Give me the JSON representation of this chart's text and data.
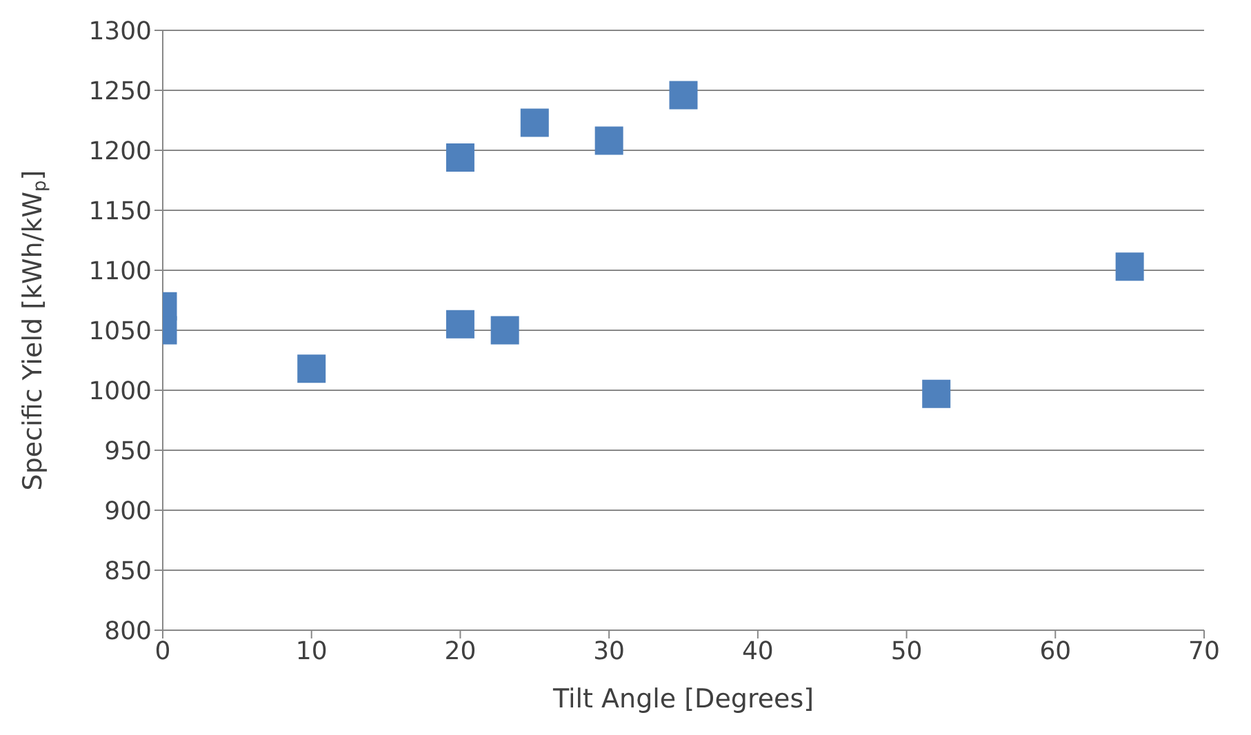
{
  "chart_data": {
    "type": "scatter",
    "xlabel": "Tilt Angle [Degrees]",
    "ylabel": "Specific Yield [kWh/kW$_{p}$]",
    "xlim": [
      0,
      70
    ],
    "xticks": [
      0,
      10,
      20,
      30,
      40,
      50,
      60,
      70
    ],
    "ylim": [
      800,
      1300
    ],
    "yticks": [
      800,
      850,
      900,
      950,
      1000,
      1050,
      1100,
      1150,
      1200,
      1250,
      1300
    ],
    "grid": "y",
    "marker": "square",
    "series": [
      {
        "color": "#4f81bd",
        "x": [
          0,
          0,
          10,
          20,
          20,
          23,
          25,
          30,
          35,
          52,
          65
        ],
        "values": [
          1070,
          1050,
          1018,
          1194,
          1055,
          1050,
          1223,
          1208,
          1246,
          997,
          1103
        ]
      }
    ]
  }
}
